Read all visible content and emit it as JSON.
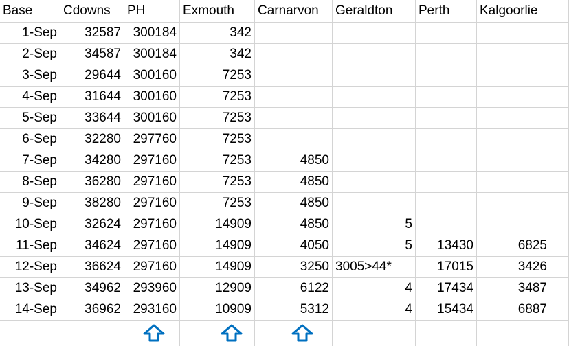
{
  "table": {
    "header": [
      "Base",
      "Cdowns",
      "PH",
      "Exmouth",
      "Carnarvon",
      "Geraldton",
      "Perth",
      "Kalgoorlie"
    ],
    "rows": [
      [
        "1-Sep",
        32587,
        300184,
        342,
        null,
        null,
        null,
        null
      ],
      [
        "2-Sep",
        34587,
        300184,
        342,
        null,
        null,
        null,
        null
      ],
      [
        "3-Sep",
        29644,
        300160,
        7253,
        null,
        null,
        null,
        null
      ],
      [
        "4-Sep",
        31644,
        300160,
        7253,
        null,
        null,
        null,
        null
      ],
      [
        "5-Sep",
        33644,
        300160,
        7253,
        null,
        null,
        null,
        null
      ],
      [
        "6-Sep",
        32280,
        297760,
        7253,
        null,
        null,
        null,
        null
      ],
      [
        "7-Sep",
        34280,
        297160,
        7253,
        4850,
        null,
        null,
        null
      ],
      [
        "8-Sep",
        36280,
        297160,
        7253,
        4850,
        null,
        null,
        null
      ],
      [
        "9-Sep",
        38280,
        297160,
        7253,
        4850,
        null,
        null,
        null
      ],
      [
        "10-Sep",
        32624,
        297160,
        14909,
        4850,
        5,
        null,
        null
      ],
      [
        "11-Sep",
        34624,
        297160,
        14909,
        4050,
        5,
        13430,
        6825
      ],
      [
        "12-Sep",
        36624,
        297160,
        14909,
        3250,
        "3005>44*",
        17015,
        3426
      ],
      [
        "13-Sep",
        34962,
        293960,
        12909,
        6122,
        4,
        17434,
        3487
      ],
      [
        "14-Sep",
        36962,
        293160,
        10909,
        5312,
        4,
        15434,
        6887
      ]
    ]
  }
}
